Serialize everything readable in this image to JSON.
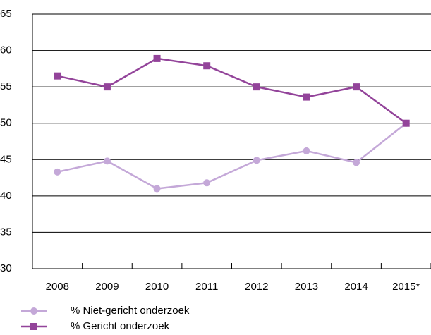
{
  "chart_data": {
    "type": "line",
    "categories": [
      "2008",
      "2009",
      "2010",
      "2011",
      "2012",
      "2013",
      "2014",
      "2015*"
    ],
    "series": [
      {
        "name": "% Niet-gericht onderzoek",
        "color": "#c4a8d8",
        "marker": "circle",
        "values": [
          43.3,
          44.8,
          41.0,
          41.8,
          44.9,
          46.2,
          44.6,
          50.0
        ]
      },
      {
        "name": "% Gericht onderzoek",
        "color": "#93449a",
        "marker": "square",
        "values": [
          56.5,
          55.0,
          58.9,
          57.9,
          55.0,
          53.6,
          55.0,
          50.0
        ]
      }
    ],
    "ylim": [
      30,
      65
    ],
    "yticks": [
      30,
      35,
      40,
      45,
      50,
      55,
      60,
      65
    ],
    "grid": true
  }
}
